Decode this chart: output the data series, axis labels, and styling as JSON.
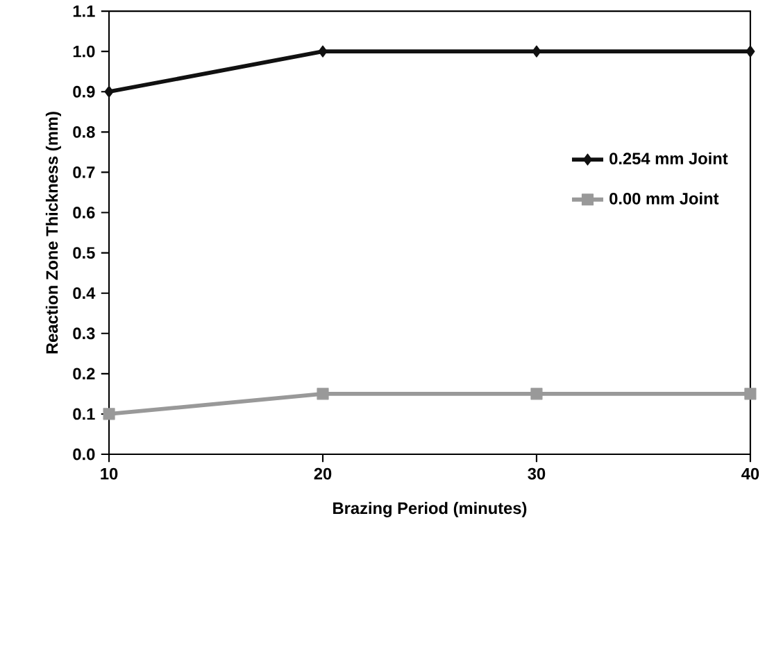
{
  "chart_data": {
    "type": "line",
    "xlabel": "Brazing Period (minutes)",
    "ylabel": "Reaction Zone Thickness (mm)",
    "x": [
      10,
      20,
      30,
      40
    ],
    "series": [
      {
        "name": "0.254 mm Joint",
        "color": "#111111",
        "marker": "diamond",
        "values": [
          0.9,
          1.0,
          1.0,
          1.0
        ]
      },
      {
        "name": "0.00 mm Joint",
        "color": "#999999",
        "marker": "square",
        "values": [
          0.1,
          0.15,
          0.15,
          0.15
        ]
      }
    ],
    "xlim": [
      10,
      40
    ],
    "xticks": [
      10,
      20,
      30,
      40
    ],
    "ylim": [
      0,
      1.1
    ],
    "yticks": [
      {
        "value": 0,
        "label": "0.0"
      },
      0.1,
      0.2,
      0.3,
      0.4,
      0.5,
      0.6,
      0.7,
      0.8,
      0.9,
      {
        "value": 1.0,
        "label": "1.0"
      },
      1.1
    ],
    "legend": "right",
    "grid": false,
    "line_style": "solid"
  }
}
